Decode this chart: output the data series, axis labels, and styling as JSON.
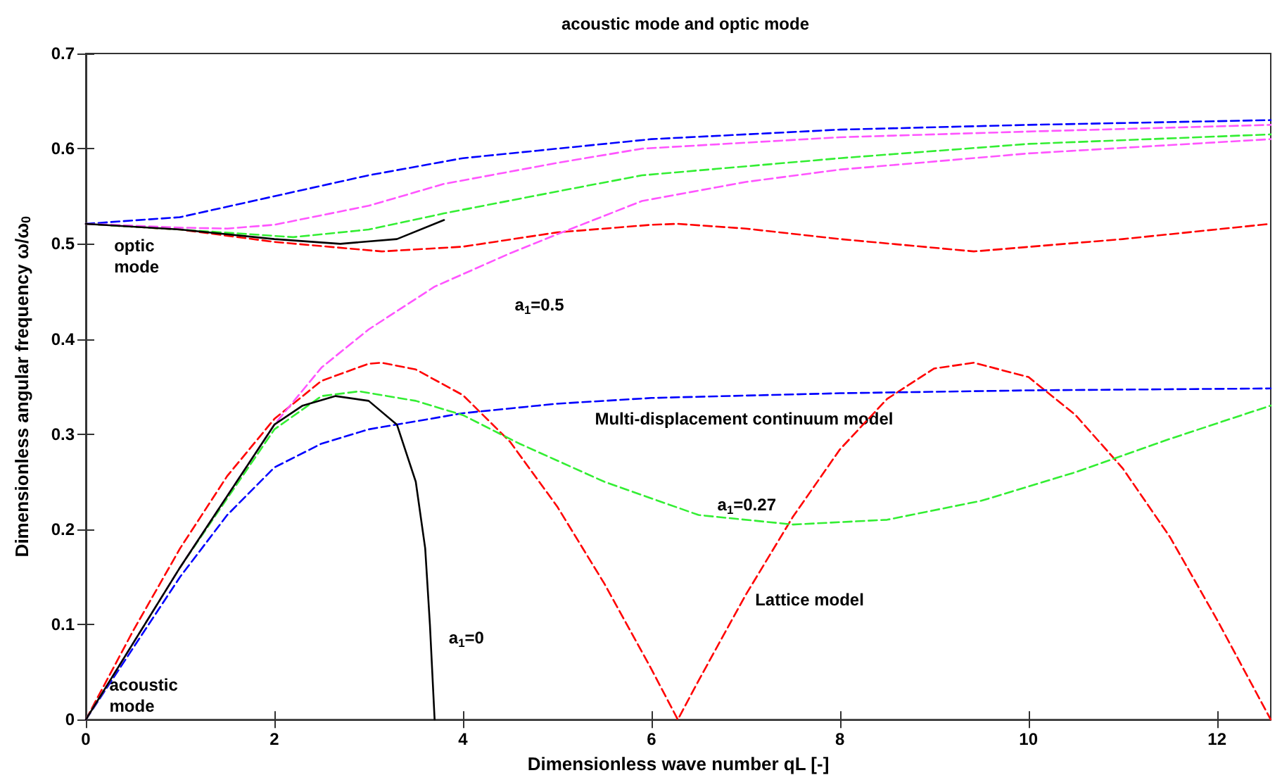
{
  "chart_data": {
    "type": "line",
    "title": "acoustic mode and optic mode",
    "xlabel": "Dimensionless wave number qL [-]",
    "ylabel": "Dimensionless angular frequency ω/ω$_{0}$",
    "xlim": [
      0,
      12.57
    ],
    "xticks": [
      0,
      2,
      4,
      6,
      8,
      10,
      12
    ],
    "ylim": [
      0,
      0.7
    ],
    "yticks": [
      0,
      0.1,
      0.2,
      0.3,
      0.4,
      0.5,
      0.6,
      0.7
    ],
    "grid": false,
    "marker": "none",
    "series": [
      {
        "color": "#ff0000",
        "line_style": "dashed",
        "x": [
          0,
          0.5,
          1,
          1.5,
          2,
          2.5,
          3,
          3.14,
          3.5,
          4,
          4.5,
          5,
          5.5,
          6,
          6.28,
          6.5,
          7,
          7.5,
          8,
          8.5,
          9,
          9.42,
          10,
          10.5,
          11,
          11.5,
          12,
          12.57
        ],
        "values": [
          0,
          0.093,
          0.18,
          0.256,
          0.316,
          0.356,
          0.374,
          0.375,
          0.368,
          0.341,
          0.292,
          0.224,
          0.143,
          0.053,
          0,
          0.041,
          0.131,
          0.213,
          0.284,
          0.337,
          0.369,
          0.375,
          0.36,
          0.32,
          0.264,
          0.192,
          0.105,
          0
        ]
      },
      {
        "color": "#ff0000",
        "line_style": "dashed",
        "x": [
          0,
          1,
          2,
          3.14,
          4,
          5,
          6,
          6.28,
          7,
          8,
          9.42,
          11,
          12.57
        ],
        "values": [
          0.521,
          0.515,
          0.502,
          0.492,
          0.497,
          0.512,
          0.52,
          0.521,
          0.516,
          0.505,
          0.492,
          0.505,
          0.521
        ]
      },
      {
        "color": "#0000ff",
        "line_style": "dashed",
        "x": [
          0,
          0.5,
          1,
          1.5,
          2,
          2.5,
          3,
          4,
          5,
          6,
          8,
          10,
          12.57
        ],
        "values": [
          0,
          0.075,
          0.15,
          0.215,
          0.265,
          0.29,
          0.305,
          0.322,
          0.332,
          0.338,
          0.343,
          0.346,
          0.348
        ]
      },
      {
        "color": "#0000ff",
        "line_style": "dashed",
        "x": [
          0,
          1,
          2,
          3,
          4,
          5,
          6,
          8,
          10,
          12.57
        ],
        "values": [
          0.521,
          0.528,
          0.55,
          0.572,
          0.59,
          0.6,
          0.61,
          0.62,
          0.625,
          0.63
        ]
      },
      {
        "color": "#33ee33",
        "line_style": "dashed",
        "x": [
          0,
          1,
          2,
          2.5,
          2.9,
          3.5,
          4,
          4.6,
          5.5,
          6.5,
          7.5,
          8.5,
          9.5,
          10.5,
          11.5,
          12.57
        ],
        "values": [
          0,
          0.16,
          0.305,
          0.34,
          0.345,
          0.335,
          0.32,
          0.29,
          0.25,
          0.215,
          0.205,
          0.21,
          0.23,
          0.26,
          0.295,
          0.33
        ]
      },
      {
        "color": "#33ee33",
        "line_style": "dashed",
        "x": [
          0,
          1,
          2.2,
          3,
          3.8,
          5,
          5.9,
          8,
          10,
          12.57
        ],
        "values": [
          0.521,
          0.515,
          0.507,
          0.515,
          0.532,
          0.555,
          0.572,
          0.59,
          0.605,
          0.615
        ]
      },
      {
        "color": "#ff55ff",
        "line_style": "dashed",
        "x": [
          0,
          1,
          2,
          2.5,
          3,
          3.7,
          4.5,
          5,
          5.9,
          7,
          8,
          10,
          12.57
        ],
        "values": [
          0,
          0.16,
          0.31,
          0.37,
          0.41,
          0.455,
          0.49,
          0.51,
          0.545,
          0.565,
          0.578,
          0.595,
          0.61
        ]
      },
      {
        "color": "#ff55ff",
        "line_style": "dashed",
        "x": [
          0,
          1,
          1.5,
          2,
          3,
          3.8,
          5,
          5.9,
          8,
          10,
          12.57
        ],
        "values": [
          0.521,
          0.517,
          0.516,
          0.52,
          0.54,
          0.563,
          0.585,
          0.6,
          0.612,
          0.618,
          0.625
        ]
      },
      {
        "color": "#000000",
        "line_style": "solid",
        "x": [
          0,
          1,
          2,
          2.3,
          2.65,
          3,
          3.3,
          3.5,
          3.6,
          3.65,
          3.7
        ],
        "values": [
          0,
          0.16,
          0.31,
          0.33,
          0.34,
          0.335,
          0.31,
          0.25,
          0.18,
          0.1,
          0
        ]
      },
      {
        "color": "#000000",
        "line_style": "solid",
        "x": [
          0,
          1,
          2,
          2.7,
          3.3,
          3.8
        ],
        "values": [
          0.521,
          0.515,
          0.505,
          0.5,
          0.505,
          0.525
        ]
      }
    ],
    "annotations": [
      "optic mode",
      "acoustic mode",
      "a$_{1}$=0.5",
      "a$_{1}$=0.27",
      "a$_{1}$=0",
      "Multi-displacement continuum model",
      "Lattice model"
    ]
  }
}
